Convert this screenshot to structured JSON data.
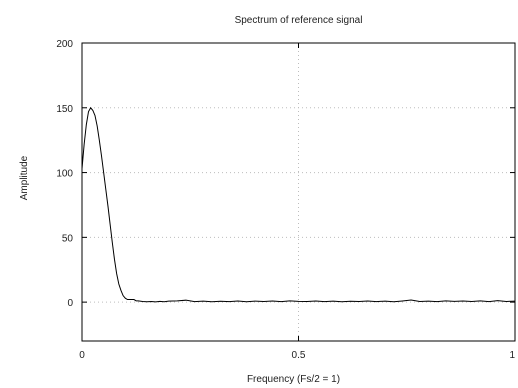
{
  "chart_data": {
    "type": "line",
    "title": "Spectrum of reference signal",
    "xlabel": "Frequency (Fs/2 = 1)",
    "ylabel": "Amplitude",
    "xlim": [
      0,
      1
    ],
    "ylim": [
      -30,
      200
    ],
    "grid": true,
    "x_ticks": [
      0,
      0.5,
      1
    ],
    "x_tick_labels": [
      "0",
      "0.5",
      "1"
    ],
    "y_ticks": [
      0,
      50,
      100,
      150,
      200
    ],
    "y_tick_labels": [
      "0",
      "50",
      "100",
      "150",
      "200"
    ],
    "colors": {
      "line": "#000000",
      "grid": "#bdbdbd",
      "axis": "#000000"
    },
    "series": [
      {
        "x": [
          0.0,
          0.005,
          0.01,
          0.015,
          0.02,
          0.025,
          0.03,
          0.035,
          0.04,
          0.045,
          0.05,
          0.055,
          0.06,
          0.065,
          0.07,
          0.075,
          0.08,
          0.085,
          0.09,
          0.095,
          0.1,
          0.105,
          0.11,
          0.115,
          0.12,
          0.125,
          0.13,
          0.14,
          0.15,
          0.16,
          0.17,
          0.18,
          0.19,
          0.2,
          0.22,
          0.24,
          0.26,
          0.28,
          0.3,
          0.32,
          0.34,
          0.36,
          0.38,
          0.4,
          0.42,
          0.44,
          0.46,
          0.48,
          0.5,
          0.52,
          0.54,
          0.56,
          0.58,
          0.6,
          0.62,
          0.64,
          0.66,
          0.68,
          0.7,
          0.72,
          0.74,
          0.76,
          0.78,
          0.8,
          0.82,
          0.84,
          0.86,
          0.88,
          0.9,
          0.92,
          0.94,
          0.96,
          0.98,
          1.0
        ],
        "values": [
          103,
          122,
          137,
          147,
          150,
          148,
          144,
          136,
          125,
          113,
          100,
          87,
          74,
          60,
          46,
          33,
          22,
          14,
          9,
          5,
          3,
          2,
          2,
          2,
          2,
          1,
          1,
          0.5,
          0.3,
          0.5,
          0.2,
          0.6,
          0.3,
          0.8,
          1.0,
          1.5,
          0.4,
          0.8,
          0.3,
          0.7,
          0.4,
          0.9,
          0.3,
          0.8,
          0.5,
          0.9,
          0.4,
          1.0,
          0.6,
          0.5,
          0.9,
          0.4,
          0.8,
          0.3,
          0.7,
          0.5,
          0.9,
          0.4,
          0.8,
          0.3,
          0.9,
          1.6,
          0.5,
          0.8,
          0.4,
          1.0,
          0.6,
          0.9,
          0.5,
          1.0,
          0.4,
          1.2,
          0.5,
          0.8
        ]
      }
    ]
  }
}
